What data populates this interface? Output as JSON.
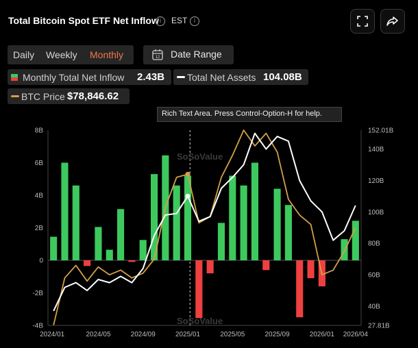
{
  "header": {
    "title": "Total Bitcoin Spot ETF Net Inflow",
    "timezone": "EST"
  },
  "tabs": [
    {
      "label": "Daily",
      "active": false
    },
    {
      "label": "Weekly",
      "active": false
    },
    {
      "label": "Monthly",
      "active": true
    }
  ],
  "date_range": {
    "label": "Date Range",
    "icon_text": "12"
  },
  "legend": {
    "net_inflow": {
      "label": "Monthly Total Net Inflow",
      "value": "2.43B"
    },
    "net_assets": {
      "label": "Total Net Assets",
      "value": "104.08B"
    },
    "btc_price": {
      "label": "BTC Price",
      "value": "$78,846.62"
    }
  },
  "tooltip": "Rich Text Area. Press Control-Option-H for help.",
  "watermark": {
    "brand": "SoSoValue"
  },
  "colors": {
    "positive": "#3ec95e",
    "negative": "#ee4040",
    "assets_line": "#ffffff",
    "price_line": "#d4a048",
    "accent": "#f0774d"
  },
  "chart_data": {
    "type": "bar",
    "x_tick_labels": [
      "2024/01",
      "2024/05",
      "2024/09",
      "2025/01",
      "2025/05",
      "2025/09",
      "2026/01",
      "2026/04"
    ],
    "left_axis": {
      "ticks": [
        "8B",
        "6B",
        "4B",
        "2B",
        "0",
        "-2B",
        "-4B"
      ],
      "range": [
        -4,
        8
      ],
      "unit": "B"
    },
    "right_axis": {
      "ticks": [
        "152.01B",
        "140B",
        "120B",
        "100B",
        "80B",
        "60B",
        "40B",
        "27.81B"
      ],
      "range": [
        27.81,
        152.01
      ],
      "unit": "B"
    },
    "categories": [
      "2024/01",
      "2024/02",
      "2024/03",
      "2024/04",
      "2024/05",
      "2024/06",
      "2024/07",
      "2024/08",
      "2024/09",
      "2024/10",
      "2024/11",
      "2024/12",
      "2025/01",
      "2025/02",
      "2025/03",
      "2025/04",
      "2025/05",
      "2025/06",
      "2025/07",
      "2025/08",
      "2025/09",
      "2025/10",
      "2025/11",
      "2025/12",
      "2026/01",
      "2026/02",
      "2026/03",
      "2026/04"
    ],
    "series": [
      {
        "name": "Monthly Total Net Inflow",
        "axis": "left",
        "values": [
          1.45,
          6.0,
          4.6,
          -0.35,
          2.05,
          0.65,
          3.15,
          -0.1,
          1.25,
          5.3,
          6.45,
          4.6,
          5.2,
          -3.55,
          -0.8,
          2.3,
          5.2,
          4.6,
          6.0,
          -0.6,
          4.4,
          3.4,
          -3.5,
          -1.1,
          -1.6,
          0.0,
          1.3,
          2.43
        ]
      },
      {
        "name": "Total Net Assets",
        "axis": "right",
        "values": [
          37,
          52,
          55,
          50,
          57,
          55,
          59,
          55,
          64,
          85,
          98,
          99,
          110,
          94,
          97,
          115,
          122,
          130,
          150,
          140,
          148,
          145,
          120,
          107,
          100,
          82,
          88,
          104.08
        ]
      },
      {
        "name": "BTC Price",
        "axis": "right",
        "values": [
          28,
          58,
          66,
          56,
          65,
          60,
          63,
          58,
          61,
          70,
          103,
          122,
          124,
          93,
          97,
          122,
          136,
          152,
          142,
          150,
          138,
          108,
          98,
          92,
          60,
          63,
          75,
          90
        ]
      }
    ]
  }
}
